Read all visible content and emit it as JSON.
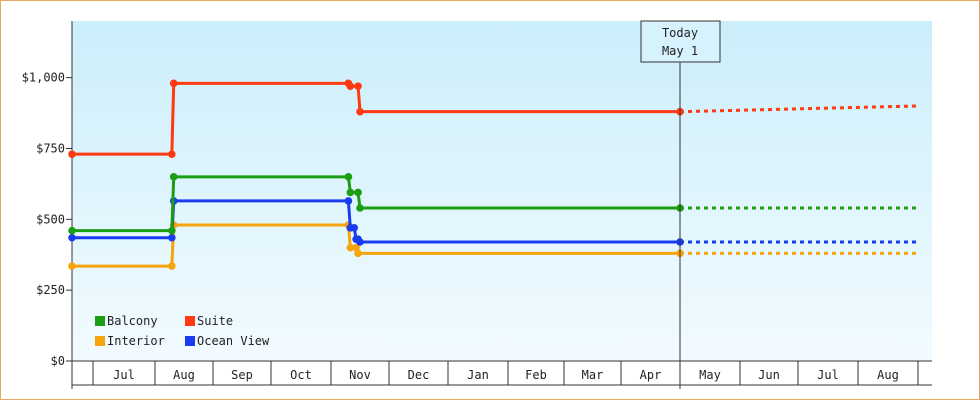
{
  "chart_data": {
    "type": "line",
    "subtype": "step",
    "y_ticks": [
      "$0",
      "$250",
      "$500",
      "$750",
      "$1,000"
    ],
    "y_tick_values": [
      0,
      250,
      500,
      750,
      1000
    ],
    "ylim": [
      0,
      1200
    ],
    "x_tick_labels": [
      "Jul",
      "Aug",
      "Sep",
      "Oct",
      "Nov",
      "Dec",
      "Jan",
      "Feb",
      "Mar",
      "Apr",
      "May",
      "Jun",
      "Jul",
      "Aug"
    ],
    "x_range": [
      "Jun 15",
      "Aug 31 next year"
    ],
    "grid": false,
    "background": "light blue gradient",
    "legend_position": "bottom-left",
    "today_marker": {
      "line1": "Today",
      "line2": "May 1"
    },
    "forecast_style": "dotted after today",
    "series": [
      {
        "name": "Suite",
        "color": "#ff3a12",
        "points": [
          {
            "x": "Jun 15",
            "y": 730
          },
          {
            "x": "Aug 10",
            "y": 730
          },
          {
            "x": "Aug 11",
            "y": 980
          },
          {
            "x": "Nov 10",
            "y": 980
          },
          {
            "x": "Nov 11",
            "y": 970
          },
          {
            "x": "Nov 15",
            "y": 970
          },
          {
            "x": "Nov 16",
            "y": 880
          },
          {
            "x": "May 1",
            "y": 880
          }
        ],
        "forecast": [
          {
            "x": "May 1",
            "y": 880
          },
          {
            "x": "Jun 1",
            "y": 885
          },
          {
            "x": "Jul 1",
            "y": 890
          },
          {
            "x": "Aug 31",
            "y": 900
          }
        ]
      },
      {
        "name": "Balcony",
        "color": "#1a9e12",
        "points": [
          {
            "x": "Jun 15",
            "y": 460
          },
          {
            "x": "Aug 10",
            "y": 460
          },
          {
            "x": "Aug 11",
            "y": 650
          },
          {
            "x": "Nov 10",
            "y": 650
          },
          {
            "x": "Nov 11",
            "y": 595
          },
          {
            "x": "Nov 15",
            "y": 595
          },
          {
            "x": "Nov 16",
            "y": 540
          },
          {
            "x": "May 1",
            "y": 540
          }
        ],
        "forecast": [
          {
            "x": "May 1",
            "y": 540
          },
          {
            "x": "Aug 31",
            "y": 540
          }
        ]
      },
      {
        "name": "Ocean View",
        "color": "#1a3cf0",
        "points": [
          {
            "x": "Jun 15",
            "y": 435
          },
          {
            "x": "Aug 10",
            "y": 435
          },
          {
            "x": "Aug 11",
            "y": 565
          },
          {
            "x": "Nov 10",
            "y": 565
          },
          {
            "x": "Nov 11",
            "y": 470
          },
          {
            "x": "Nov 13",
            "y": 470
          },
          {
            "x": "Nov 14",
            "y": 430
          },
          {
            "x": "Nov 15",
            "y": 430
          },
          {
            "x": "Nov 16",
            "y": 420
          },
          {
            "x": "May 1",
            "y": 420
          }
        ],
        "forecast": [
          {
            "x": "May 1",
            "y": 420
          },
          {
            "x": "Aug 31",
            "y": 420
          }
        ]
      },
      {
        "name": "Interior",
        "color": "#f5a40c",
        "points": [
          {
            "x": "Jun 15",
            "y": 335
          },
          {
            "x": "Aug 10",
            "y": 335
          },
          {
            "x": "Aug 11",
            "y": 480
          },
          {
            "x": "Nov 10",
            "y": 480
          },
          {
            "x": "Nov 11",
            "y": 400
          },
          {
            "x": "Nov 14",
            "y": 400
          },
          {
            "x": "Nov 15",
            "y": 380
          },
          {
            "x": "May 1",
            "y": 380
          }
        ],
        "forecast": [
          {
            "x": "May 1",
            "y": 380
          },
          {
            "x": "Aug 31",
            "y": 380
          }
        ]
      }
    ],
    "legend": [
      {
        "name": "Balcony",
        "color": "#1a9e12"
      },
      {
        "name": "Suite",
        "color": "#ff3a12"
      },
      {
        "name": "Interior",
        "color": "#f5a40c"
      },
      {
        "name": "Ocean View",
        "color": "#1a3cf0"
      }
    ]
  }
}
